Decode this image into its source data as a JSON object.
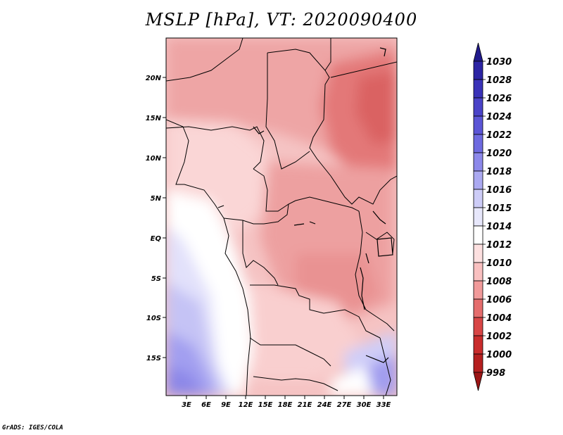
{
  "title": "MSLP [hPa], VT: 2020090400",
  "footer": "GrADS: IGES/COLA",
  "map": {
    "variable": "MSLP",
    "units": "hPa",
    "valid_time": "2020090400",
    "lat_labels": [
      "20N",
      "15N",
      "10N",
      "5N",
      "EQ",
      "5S",
      "10S",
      "15S"
    ],
    "lon_labels": [
      "3E",
      "6E",
      "9E",
      "12E",
      "15E",
      "18E",
      "21E",
      "24E",
      "27E",
      "30E",
      "33E"
    ]
  },
  "colorbar": {
    "labels": [
      "1030",
      "1028",
      "1026",
      "1024",
      "1022",
      "1020",
      "1018",
      "1016",
      "1015",
      "1014",
      "1012",
      "1010",
      "1008",
      "1006",
      "1004",
      "1002",
      "1000",
      "998"
    ],
    "colors": [
      "#211a8c",
      "#2c24a4",
      "#3a32b8",
      "#4a43c8",
      "#5b55d6",
      "#6e6ae0",
      "#8c88ea",
      "#aba9f1",
      "#cdccf7",
      "#e7e7fb",
      "#ffffff",
      "#fde0e0",
      "#f9c0c0",
      "#f19a9a",
      "#e56d6d",
      "#d84646",
      "#c92c2c",
      "#b51f1f",
      "#9c1616"
    ]
  },
  "colors": {
    "coast": "#000000",
    "low_pressure": "#e07070",
    "high_pressure": "#8c86e8"
  }
}
